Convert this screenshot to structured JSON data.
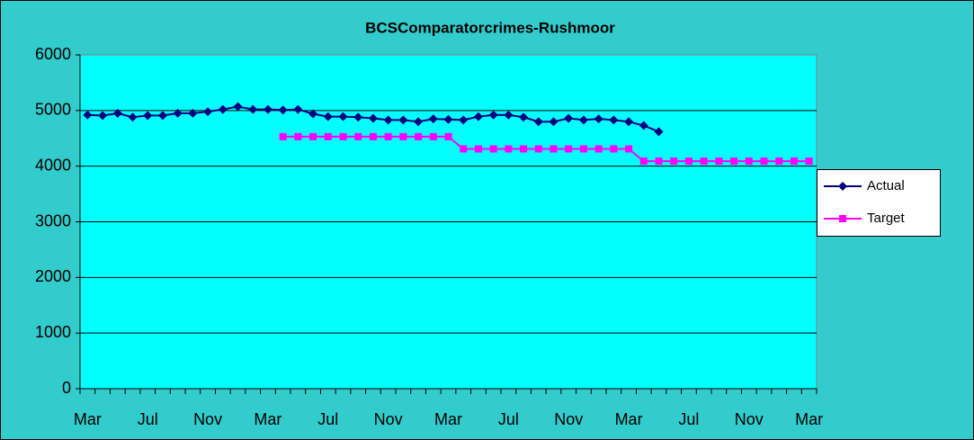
{
  "chart_data": {
    "type": "line",
    "title": "BCSComparatorcrimes-Rushmoor",
    "categories": [
      "Mar",
      null,
      null,
      null,
      "Jul",
      null,
      null,
      null,
      "Nov",
      null,
      null,
      null,
      "Mar",
      null,
      null,
      null,
      "Jul",
      null,
      null,
      null,
      "Nov",
      null,
      null,
      null,
      "Mar",
      null,
      null,
      null,
      "Jul",
      null,
      null,
      null,
      "Nov",
      null,
      null,
      null,
      "Mar",
      null,
      null,
      null,
      "Jul",
      null,
      null,
      null,
      "Nov",
      null,
      null,
      null,
      "Mar"
    ],
    "series": [
      {
        "name": "Actual",
        "color": "#000080",
        "marker": "diamond",
        "values": [
          4920,
          4910,
          4950,
          4880,
          4910,
          4910,
          4950,
          4950,
          4980,
          5020,
          5070,
          5020,
          5020,
          5010,
          5020,
          4940,
          4890,
          4890,
          4880,
          4860,
          4830,
          4830,
          4800,
          4850,
          4840,
          4830,
          4890,
          4920,
          4920,
          4880,
          4800,
          4800,
          4860,
          4830,
          4850,
          4830,
          4800,
          4730,
          4620,
          null,
          null,
          null,
          null,
          null,
          null,
          null,
          null,
          null,
          null
        ]
      },
      {
        "name": "Target",
        "color": "#ff00ff",
        "marker": "square",
        "values": [
          null,
          null,
          null,
          null,
          null,
          null,
          null,
          null,
          null,
          null,
          null,
          null,
          null,
          4530,
          4530,
          4530,
          4530,
          4530,
          4530,
          4530,
          4530,
          4530,
          4530,
          4530,
          4530,
          4310,
          4310,
          4310,
          4310,
          4310,
          4310,
          4310,
          4310,
          4310,
          4310,
          4310,
          4310,
          4090,
          4090,
          4090,
          4090,
          4090,
          4090,
          4090,
          4090,
          4090,
          4090,
          4090,
          4090
        ]
      }
    ],
    "ylim": [
      0,
      6000
    ],
    "yticks": [
      0,
      1000,
      2000,
      3000,
      4000,
      5000,
      6000
    ],
    "grid": true,
    "legend": "right",
    "background": "#33cccc",
    "plot_background": "#00ffff"
  }
}
